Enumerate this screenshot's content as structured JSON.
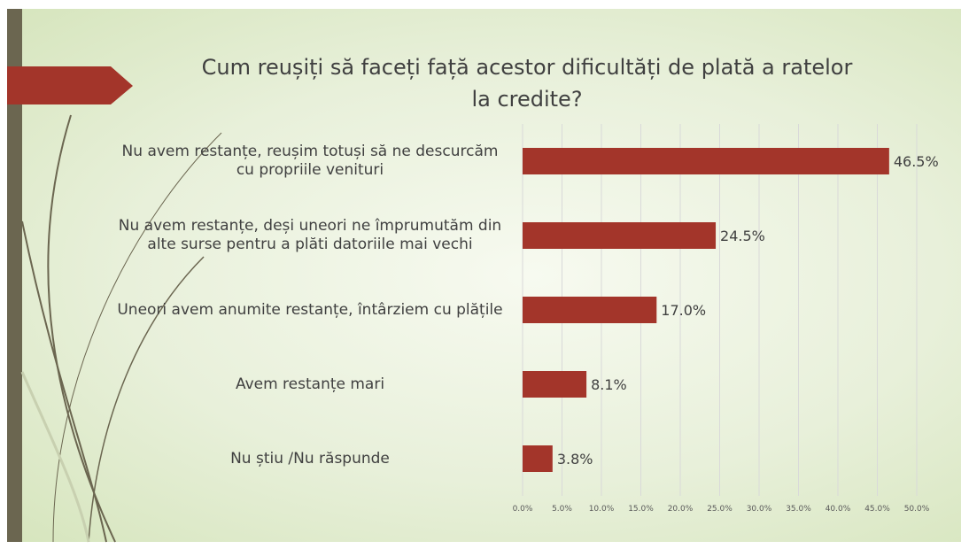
{
  "chart_data": {
    "type": "bar",
    "orientation": "horizontal",
    "title": "Cum reușiți să faceți față acestor dificultăți de plată a ratelor la credite?",
    "categories": [
      "Nu avem restanțe, reușim totuși să ne descurcăm cu propriile venituri",
      "Nu avem restanțe, deși uneori ne împrumutăm din alte surse pentru a plăti datoriile mai vechi",
      "Uneori avem anumite restanțe, întârziem cu plățile",
      "Avem restanțe mari",
      "Nu știu /Nu răspunde"
    ],
    "values": [
      46.5,
      24.5,
      17.0,
      8.1,
      3.8
    ],
    "value_labels": [
      "46.5%",
      "24.5%",
      "17.0%",
      "8.1%",
      "3.8%"
    ],
    "color": "#a3352a",
    "xlim": [
      0,
      50
    ],
    "xticks": [
      {
        "value": 0,
        "label": "0.0%"
      },
      {
        "value": 5,
        "label": "5.0%"
      },
      {
        "value": 10,
        "label": "10.0%"
      },
      {
        "value": 15,
        "label": "15.0%"
      },
      {
        "value": 20,
        "label": "20.0%"
      },
      {
        "value": 25,
        "label": "25.0%"
      },
      {
        "value": 30,
        "label": "30.0%"
      },
      {
        "value": 35,
        "label": "35.0%"
      },
      {
        "value": 40,
        "label": "40.0%"
      },
      {
        "value": 45,
        "label": "45.0%"
      },
      {
        "value": 50,
        "label": "50.0%"
      }
    ],
    "grid": true
  }
}
